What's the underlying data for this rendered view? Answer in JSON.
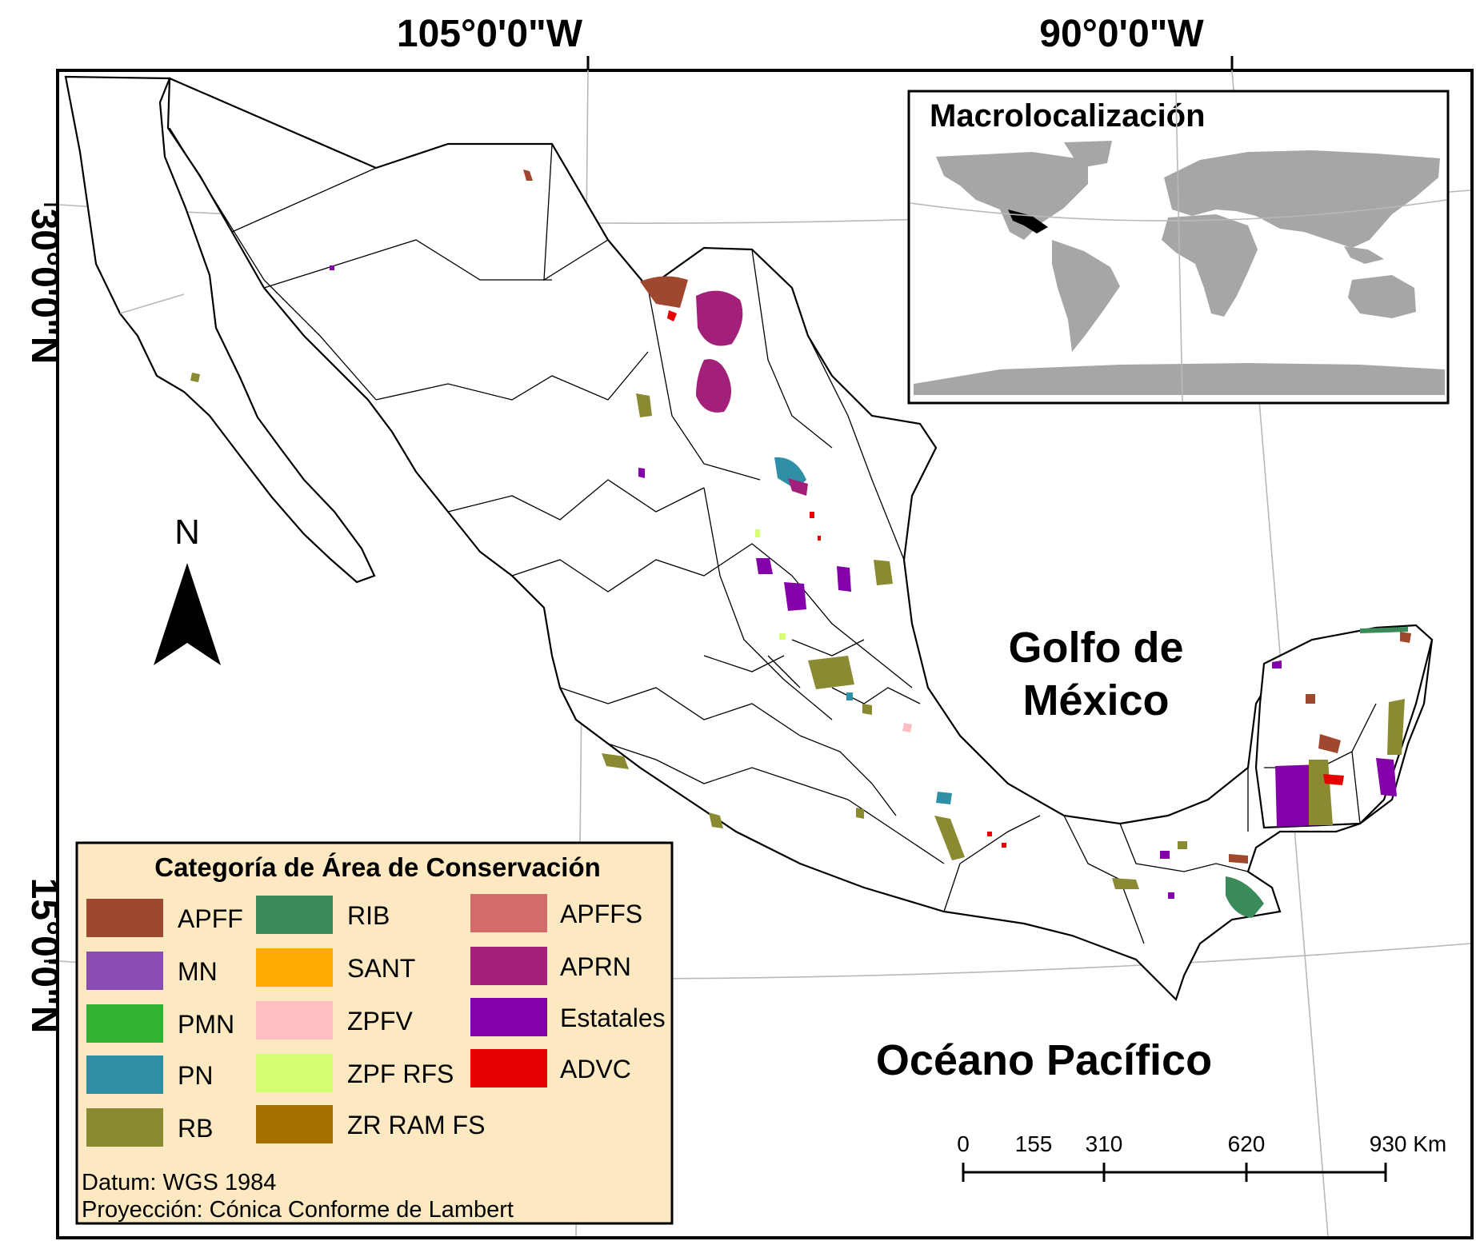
{
  "coordinates": {
    "lon_105": "105°0'0\"W",
    "lon_90": "90°0'0\"W",
    "lat_30": "30°0'0\"N",
    "lat_15": "15°0'0\"N"
  },
  "north_arrow": {
    "label": "N",
    "icon": "north-arrow-icon"
  },
  "inset": {
    "title": "Macrolocalización",
    "highlight_color": "#000000",
    "land_color": "#a6a6a6"
  },
  "water_labels": {
    "gulf_line1": "Golfo de",
    "gulf_line2": "México",
    "pacific": "Océano Pacífico"
  },
  "legend": {
    "title": "Categoría de Área de Conservación",
    "background": "#fde9c1",
    "items": [
      {
        "label": "APFF",
        "color": "#a0472f"
      },
      {
        "label": "MN",
        "color": "#8a4db3"
      },
      {
        "label": "PMN",
        "color": "#34b234"
      },
      {
        "label": "PN",
        "color": "#2e8fa6"
      },
      {
        "label": "RB",
        "color": "#8a8a33"
      },
      {
        "label": "RIB",
        "color": "#3a8a5a"
      },
      {
        "label": "SANT",
        "color": "#ffaa00"
      },
      {
        "label": "ZPFV",
        "color": "#ffbec1"
      },
      {
        "label": "ZPF RFS",
        "color": "#d4ff73"
      },
      {
        "label": "ZR RAM FS",
        "color": "#a87000"
      },
      {
        "label": "APFFS",
        "color": "#d46b6b"
      },
      {
        "label": "APRN",
        "color": "#a3207a"
      },
      {
        "label": "Estatales",
        "color": "#8400a8"
      },
      {
        "label": "ADVC",
        "color": "#e60000"
      }
    ],
    "datum": "Datum: WGS 1984",
    "projection": "Proyección: Cónica Conforme de Lambert"
  },
  "scale_bar": {
    "labels": [
      "0",
      "155",
      "310",
      "620",
      "930 Km"
    ]
  }
}
